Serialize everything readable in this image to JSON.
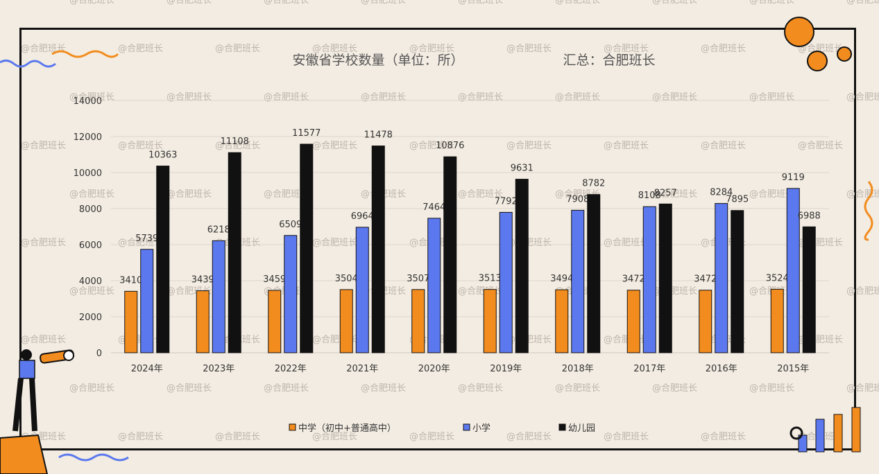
{
  "header": {
    "title": "安徽省学校数量（单位：所）",
    "source": "汇总：合肥班长"
  },
  "watermark": "@合肥班长",
  "colors": {
    "middle_school": "#f28c1e",
    "primary_school": "#5b78ee",
    "kindergarten": "#111111",
    "accent": "#f28c1e"
  },
  "chart_data": {
    "type": "bar",
    "title": "安徽省学校数量（单位：所）",
    "categories": [
      "2024年",
      "2023年",
      "2022年",
      "2021年",
      "2020年",
      "2019年",
      "2018年",
      "2017年",
      "2016年",
      "2015年"
    ],
    "series": [
      {
        "name": "中学（初中+普通高中）",
        "values": [
          3410,
          3439,
          3459,
          3504,
          3507,
          3513,
          3494,
          3472,
          3472,
          3524
        ]
      },
      {
        "name": "小学",
        "values": [
          5739,
          6218,
          6509,
          6964,
          7464,
          7792,
          7908,
          8108,
          8284,
          9119
        ]
      },
      {
        "name": "幼儿园",
        "values": [
          10363,
          11108,
          11577,
          11478,
          10876,
          9631,
          8782,
          8257,
          7895,
          6988
        ]
      }
    ],
    "ylim": [
      0,
      14000
    ],
    "yticks": [
      0,
      2000,
      4000,
      6000,
      8000,
      10000,
      12000,
      14000
    ],
    "grid": true,
    "legend": "bottom"
  }
}
